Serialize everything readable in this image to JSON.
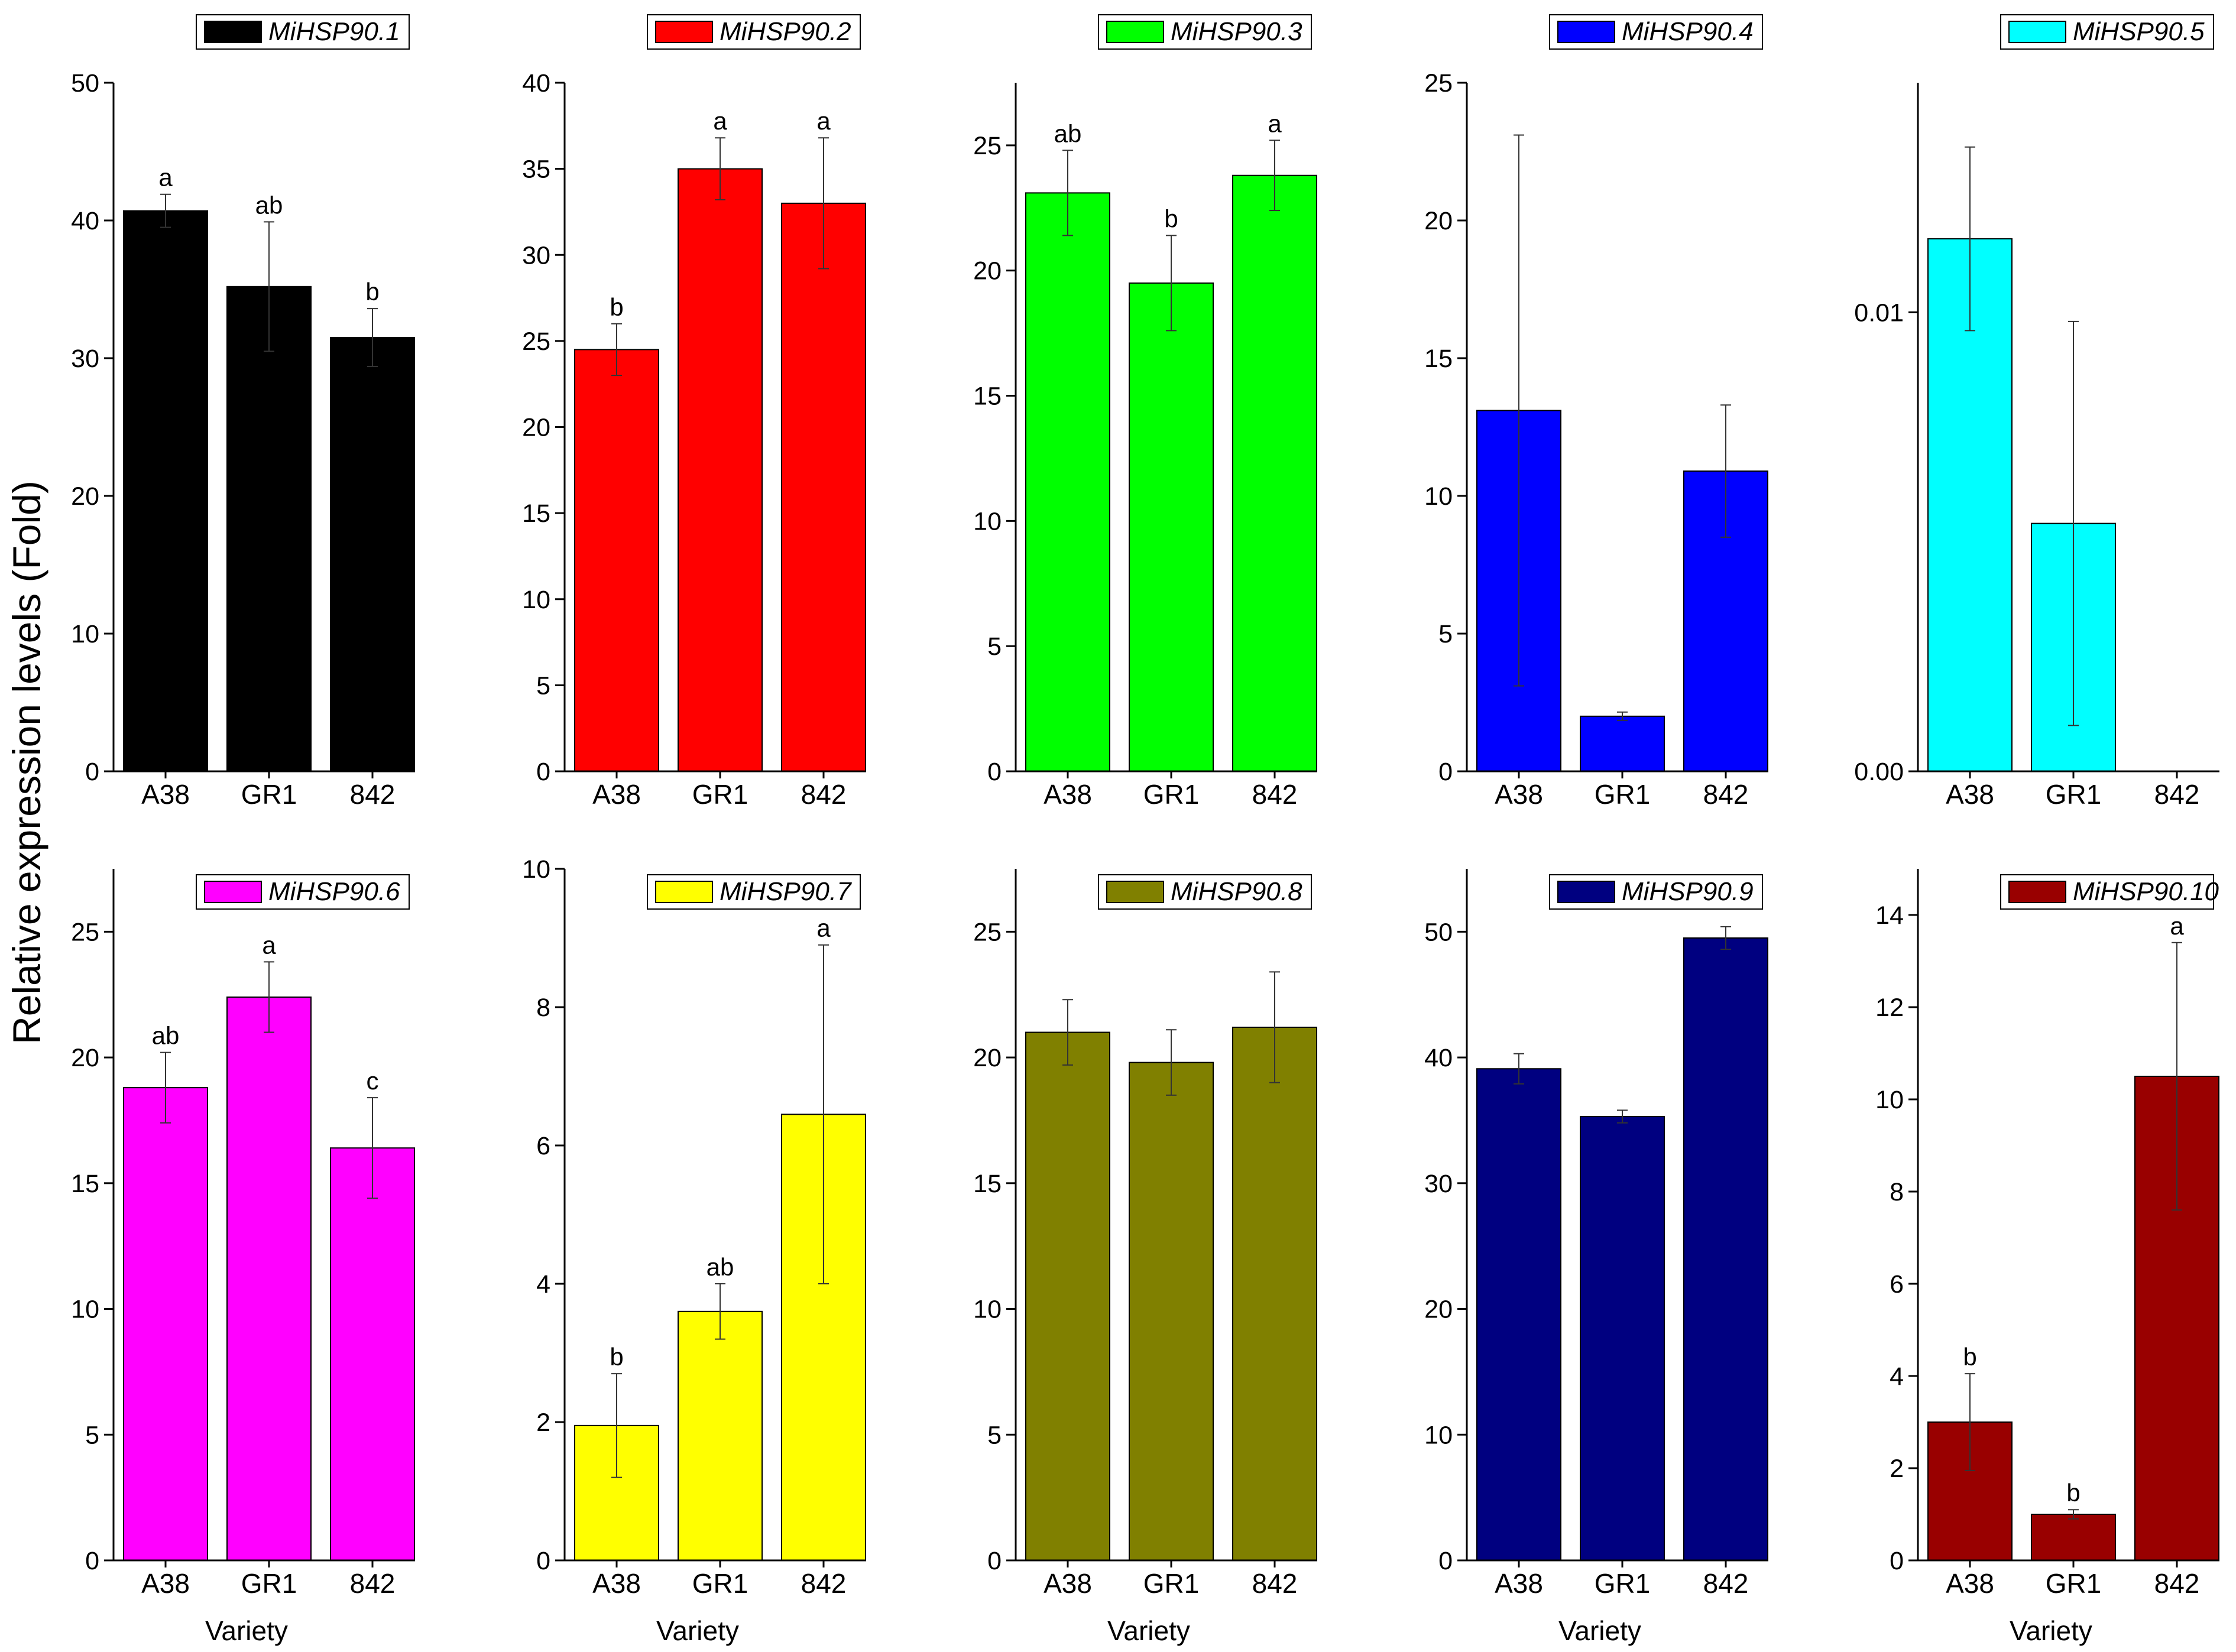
{
  "ylabel": "Relative expression levels (Fold)",
  "xlabel": "Variety",
  "categories": [
    "A38",
    "GR1",
    "842"
  ],
  "chart_data": [
    {
      "type": "bar",
      "title": "MiHSP90.1",
      "color": "#000000",
      "categories": [
        "A38",
        "GR1",
        "842"
      ],
      "values": [
        40.7,
        35.2,
        31.5
      ],
      "errors": [
        1.2,
        4.7,
        2.1
      ],
      "labels": [
        "a",
        "ab",
        "b"
      ],
      "ylim": [
        0,
        50
      ],
      "yticks": [
        0,
        10,
        20,
        30,
        40,
        50
      ],
      "tick_labels": [
        "0",
        "10",
        "20",
        "30",
        "40",
        "50"
      ]
    },
    {
      "type": "bar",
      "title": "MiHSP90.2",
      "color": "#ff0000",
      "categories": [
        "A38",
        "GR1",
        "842"
      ],
      "values": [
        24.5,
        35.0,
        33.0
      ],
      "errors": [
        1.5,
        1.8,
        3.8
      ],
      "labels": [
        "b",
        "a",
        "a"
      ],
      "ylim": [
        0,
        40
      ],
      "yticks": [
        0,
        5,
        10,
        15,
        20,
        25,
        30,
        35,
        40
      ],
      "tick_labels": [
        "0",
        "5",
        "10",
        "15",
        "20",
        "25",
        "30",
        "35",
        "40"
      ]
    },
    {
      "type": "bar",
      "title": "MiHSP90.3",
      "color": "#00ff00",
      "categories": [
        "A38",
        "GR1",
        "842"
      ],
      "values": [
        23.1,
        19.5,
        23.8
      ],
      "errors": [
        1.7,
        1.9,
        1.4
      ],
      "labels": [
        "ab",
        "b",
        "a"
      ],
      "ylim": [
        0,
        27.5
      ],
      "yticks": [
        0,
        5,
        10,
        15,
        20,
        25
      ],
      "tick_labels": [
        "0",
        "5",
        "10",
        "15",
        "20",
        "25"
      ]
    },
    {
      "type": "bar",
      "title": "MiHSP90.4",
      "color": "#0000ff",
      "categories": [
        "A38",
        "GR1",
        "842"
      ],
      "values": [
        13.1,
        2.0,
        10.9
      ],
      "errors": [
        10.0,
        0.15,
        2.4
      ],
      "labels": [
        "",
        "",
        ""
      ],
      "ylim": [
        0,
        25
      ],
      "yticks": [
        0,
        5,
        10,
        15,
        20,
        25
      ],
      "tick_labels": [
        "0",
        "5",
        "10",
        "15",
        "20",
        "25"
      ]
    },
    {
      "type": "bar",
      "title": "MiHSP90.5",
      "color": "#00ffff",
      "categories": [
        "A38",
        "GR1",
        "842"
      ],
      "values": [
        0.0116,
        0.0054,
        0
      ],
      "errors": [
        0.002,
        0.0044,
        0
      ],
      "labels": [
        "",
        "",
        ""
      ],
      "ylim": [
        0,
        0.015
      ],
      "yticks": [
        0,
        0.01
      ],
      "tick_labels": [
        "0.00",
        "0.01"
      ]
    },
    {
      "type": "bar",
      "title": "MiHSP90.6",
      "color": "#ff00ff",
      "categories": [
        "A38",
        "GR1",
        "842"
      ],
      "values": [
        18.8,
        22.4,
        16.4
      ],
      "errors": [
        1.4,
        1.4,
        2.0
      ],
      "labels": [
        "ab",
        "a",
        "c"
      ],
      "ylim": [
        0,
        27.5
      ],
      "yticks": [
        0,
        5,
        10,
        15,
        20,
        25
      ],
      "tick_labels": [
        "0",
        "5",
        "10",
        "15",
        "20",
        "25"
      ]
    },
    {
      "type": "bar",
      "title": "MiHSP90.7",
      "color": "#ffff00",
      "categories": [
        "A38",
        "GR1",
        "842"
      ],
      "values": [
        1.95,
        3.6,
        6.45
      ],
      "errors": [
        0.75,
        0.4,
        2.45
      ],
      "labels": [
        "b",
        "ab",
        "a"
      ],
      "ylim": [
        0,
        10
      ],
      "yticks": [
        0,
        2,
        4,
        6,
        8,
        10
      ],
      "tick_labels": [
        "0",
        "2",
        "4",
        "6",
        "8",
        "10"
      ]
    },
    {
      "type": "bar",
      "title": "MiHSP90.8",
      "color": "#808000",
      "categories": [
        "A38",
        "GR1",
        "842"
      ],
      "values": [
        21.0,
        19.8,
        21.2
      ],
      "errors": [
        1.3,
        1.3,
        2.2
      ],
      "labels": [
        "",
        "",
        ""
      ],
      "ylim": [
        0,
        27.5
      ],
      "yticks": [
        0,
        5,
        10,
        15,
        20,
        25
      ],
      "tick_labels": [
        "0",
        "5",
        "10",
        "15",
        "20",
        "25"
      ]
    },
    {
      "type": "bar",
      "title": "MiHSP90.9",
      "color": "#000080",
      "categories": [
        "A38",
        "GR1",
        "842"
      ],
      "values": [
        39.1,
        35.3,
        49.5
      ],
      "errors": [
        1.2,
        0.5,
        0.9
      ],
      "labels": [
        "",
        "",
        ""
      ],
      "ylim": [
        0,
        55
      ],
      "yticks": [
        0,
        10,
        20,
        30,
        40,
        50
      ],
      "tick_labels": [
        "0",
        "10",
        "20",
        "30",
        "40",
        "50"
      ]
    },
    {
      "type": "bar",
      "title": "MiHSP90.10",
      "color": "#990000",
      "categories": [
        "A38",
        "GR1",
        "842"
      ],
      "values": [
        3.0,
        1.0,
        10.5
      ],
      "errors": [
        1.05,
        0.1,
        2.9
      ],
      "labels": [
        "b",
        "b",
        "a"
      ],
      "ylim": [
        0,
        15
      ],
      "yticks": [
        0,
        2,
        4,
        6,
        8,
        10,
        12,
        14
      ],
      "tick_labels": [
        "0",
        "2",
        "4",
        "6",
        "8",
        "10",
        "12",
        "14"
      ]
    }
  ]
}
